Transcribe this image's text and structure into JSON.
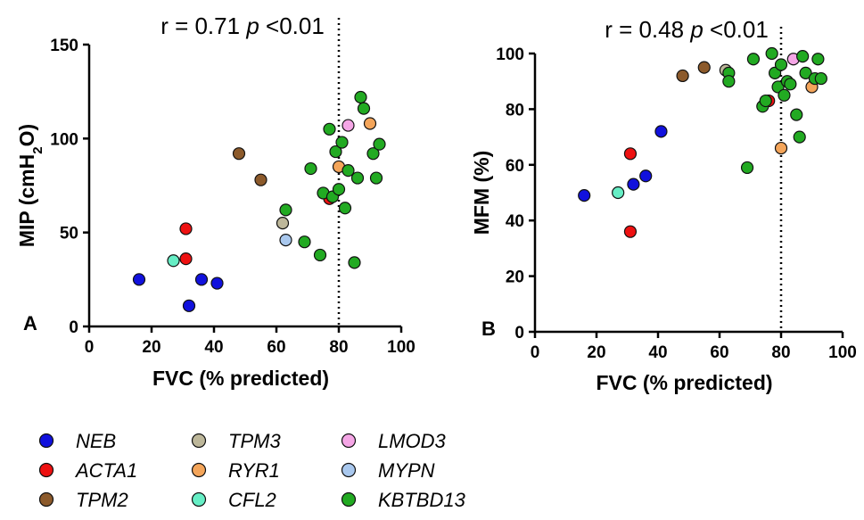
{
  "colors": {
    "NEB": "#1111dd",
    "ACTA1": "#ee1111",
    "TPM2": "#8c5a2b",
    "TPM3": "#bdb79a",
    "RYR1": "#f4a55a",
    "CFL2": "#66eec5",
    "LMOD3": "#f5a6e6",
    "MYPN": "#a9c8ee",
    "KBTBD13": "#22aa22"
  },
  "legend": [
    "NEB",
    "ACTA1",
    "TPM2",
    "TPM3",
    "RYR1",
    "CFL2",
    "LMOD3",
    "MYPN",
    "KBTBD13"
  ],
  "chart_data": [
    {
      "type": "scatter",
      "panel": "A",
      "title_prefix": "r = 0.71 ",
      "title_p": "p",
      "title_suffix": " <0.01",
      "xlabel": "FVC (% predicted)",
      "ylabel": "MIP (cmH",
      "ylabel_sub": "2",
      "ylabel_tail": "O)",
      "xlim": [
        0,
        100
      ],
      "ylim": [
        0,
        150
      ],
      "xticks": [
        0,
        20,
        40,
        60,
        80,
        100
      ],
      "yticks": [
        0,
        50,
        100,
        150
      ],
      "reference_x": 80,
      "points": [
        {
          "x": 16,
          "y": 25,
          "group": "NEB"
        },
        {
          "x": 36,
          "y": 25,
          "group": "NEB"
        },
        {
          "x": 41,
          "y": 23,
          "group": "NEB"
        },
        {
          "x": 32,
          "y": 11,
          "group": "NEB"
        },
        {
          "x": 31,
          "y": 52,
          "group": "ACTA1"
        },
        {
          "x": 31,
          "y": 36,
          "group": "ACTA1"
        },
        {
          "x": 77,
          "y": 68,
          "group": "ACTA1"
        },
        {
          "x": 27,
          "y": 35,
          "group": "CFL2"
        },
        {
          "x": 48,
          "y": 92,
          "group": "TPM2"
        },
        {
          "x": 55,
          "y": 78,
          "group": "TPM2"
        },
        {
          "x": 62,
          "y": 55,
          "group": "TPM3"
        },
        {
          "x": 63,
          "y": 46,
          "group": "MYPN"
        },
        {
          "x": 83,
          "y": 107,
          "group": "LMOD3"
        },
        {
          "x": 90,
          "y": 108,
          "group": "RYR1"
        },
        {
          "x": 80,
          "y": 85,
          "group": "RYR1"
        },
        {
          "x": 63,
          "y": 62,
          "group": "KBTBD13"
        },
        {
          "x": 69,
          "y": 45,
          "group": "KBTBD13"
        },
        {
          "x": 71,
          "y": 84,
          "group": "KBTBD13"
        },
        {
          "x": 74,
          "y": 38,
          "group": "KBTBD13"
        },
        {
          "x": 75,
          "y": 71,
          "group": "KBTBD13"
        },
        {
          "x": 77,
          "y": 105,
          "group": "KBTBD13"
        },
        {
          "x": 78,
          "y": 69,
          "group": "KBTBD13"
        },
        {
          "x": 79,
          "y": 93,
          "group": "KBTBD13"
        },
        {
          "x": 80,
          "y": 73,
          "group": "KBTBD13"
        },
        {
          "x": 81,
          "y": 98,
          "group": "KBTBD13"
        },
        {
          "x": 82,
          "y": 63,
          "group": "KBTBD13"
        },
        {
          "x": 83,
          "y": 83,
          "group": "KBTBD13"
        },
        {
          "x": 85,
          "y": 34,
          "group": "KBTBD13"
        },
        {
          "x": 86,
          "y": 79,
          "group": "KBTBD13"
        },
        {
          "x": 87,
          "y": 122,
          "group": "KBTBD13"
        },
        {
          "x": 88,
          "y": 116,
          "group": "KBTBD13"
        },
        {
          "x": 91,
          "y": 92,
          "group": "KBTBD13"
        },
        {
          "x": 92,
          "y": 79,
          "group": "KBTBD13"
        },
        {
          "x": 93,
          "y": 97,
          "group": "KBTBD13"
        }
      ]
    },
    {
      "type": "scatter",
      "panel": "B",
      "title_prefix": "r = 0.48 ",
      "title_p": "p",
      "title_suffix": " <0.01",
      "xlabel": "FVC (% predicted)",
      "ylabel": "MFM (%)",
      "xlim": [
        0,
        100
      ],
      "ylim": [
        0,
        100
      ],
      "xticks": [
        0,
        20,
        40,
        60,
        80,
        100
      ],
      "yticks": [
        0,
        20,
        40,
        60,
        80,
        100
      ],
      "reference_x": 80,
      "points": [
        {
          "x": 16,
          "y": 49,
          "group": "NEB"
        },
        {
          "x": 32,
          "y": 53,
          "group": "NEB"
        },
        {
          "x": 36,
          "y": 56,
          "group": "NEB"
        },
        {
          "x": 41,
          "y": 72,
          "group": "NEB"
        },
        {
          "x": 31,
          "y": 64,
          "group": "ACTA1"
        },
        {
          "x": 31,
          "y": 36,
          "group": "ACTA1"
        },
        {
          "x": 76,
          "y": 83,
          "group": "ACTA1"
        },
        {
          "x": 27,
          "y": 50,
          "group": "CFL2"
        },
        {
          "x": 48,
          "y": 92,
          "group": "TPM2"
        },
        {
          "x": 55,
          "y": 95,
          "group": "TPM2"
        },
        {
          "x": 62,
          "y": 94,
          "group": "TPM3"
        },
        {
          "x": 84,
          "y": 98,
          "group": "LMOD3"
        },
        {
          "x": 80,
          "y": 66,
          "group": "RYR1"
        },
        {
          "x": 90,
          "y": 88,
          "group": "RYR1"
        },
        {
          "x": 63,
          "y": 93,
          "group": "KBTBD13"
        },
        {
          "x": 63,
          "y": 90,
          "group": "KBTBD13"
        },
        {
          "x": 69,
          "y": 59,
          "group": "KBTBD13"
        },
        {
          "x": 71,
          "y": 98,
          "group": "KBTBD13"
        },
        {
          "x": 74,
          "y": 81,
          "group": "KBTBD13"
        },
        {
          "x": 75,
          "y": 83,
          "group": "KBTBD13"
        },
        {
          "x": 77,
          "y": 100,
          "group": "KBTBD13"
        },
        {
          "x": 78,
          "y": 93,
          "group": "KBTBD13"
        },
        {
          "x": 79,
          "y": 88,
          "group": "KBTBD13"
        },
        {
          "x": 80,
          "y": 96,
          "group": "KBTBD13"
        },
        {
          "x": 81,
          "y": 85,
          "group": "KBTBD13"
        },
        {
          "x": 82,
          "y": 90,
          "group": "KBTBD13"
        },
        {
          "x": 83,
          "y": 89,
          "group": "KBTBD13"
        },
        {
          "x": 85,
          "y": 78,
          "group": "KBTBD13"
        },
        {
          "x": 86,
          "y": 70,
          "group": "KBTBD13"
        },
        {
          "x": 87,
          "y": 99,
          "group": "KBTBD13"
        },
        {
          "x": 88,
          "y": 93,
          "group": "KBTBD13"
        },
        {
          "x": 91,
          "y": 91,
          "group": "KBTBD13"
        },
        {
          "x": 92,
          "y": 98,
          "group": "KBTBD13"
        },
        {
          "x": 93,
          "y": 91,
          "group": "KBTBD13"
        }
      ]
    }
  ]
}
